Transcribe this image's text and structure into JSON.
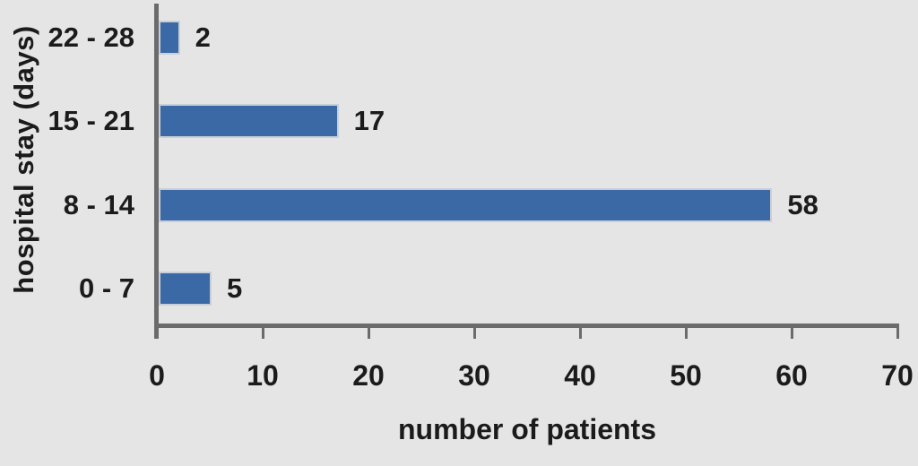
{
  "chart_data": {
    "type": "bar",
    "orientation": "horizontal",
    "title": "",
    "xlabel": "number of patients",
    "ylabel": "hospital stay (days)",
    "categories": [
      "22 - 28",
      "15 - 21",
      "8 - 14",
      "0 - 7"
    ],
    "values": [
      2,
      17,
      58,
      5
    ],
    "value_labels": [
      "2",
      "17",
      "58",
      "5"
    ],
    "xlim": [
      0,
      70
    ],
    "xticks": [
      0,
      10,
      20,
      30,
      40,
      50,
      60,
      70
    ],
    "grid": false,
    "legend": false,
    "colors": {
      "bar": "#3a69a6",
      "bar_border": "#c9cfda",
      "background": "#e6e5e5",
      "axis": "#6b6b6b",
      "text": "#1b1b1b"
    }
  }
}
